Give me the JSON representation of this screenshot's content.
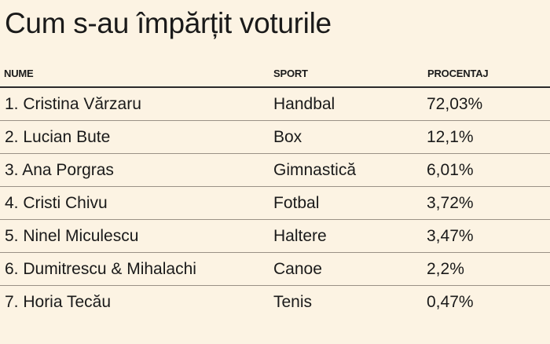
{
  "title": "Cum s-au împărțit voturile",
  "columns": {
    "name": "NUME",
    "sport": "SPORT",
    "percent": "PROCENTAJ"
  },
  "rows": [
    {
      "name": "1. Cristina Vărzaru",
      "sport": "Handbal",
      "percent": "72,03%"
    },
    {
      "name": "2. Lucian Bute",
      "sport": "Box",
      "percent": "12,1%"
    },
    {
      "name": "3. Ana Porgras",
      "sport": "Gimnastică",
      "percent": "6,01%"
    },
    {
      "name": "4. Cristi Chivu",
      "sport": "Fotbal",
      "percent": "3,72%"
    },
    {
      "name": "5. Ninel Miculescu",
      "sport": "Haltere",
      "percent": "3,47%"
    },
    {
      "name": "6. Dumitrescu & Mihalachi",
      "sport": "Canoe",
      "percent": "2,2%"
    },
    {
      "name": "7. Horia Tecău",
      "sport": "Tenis",
      "percent": "0,47%"
    }
  ]
}
